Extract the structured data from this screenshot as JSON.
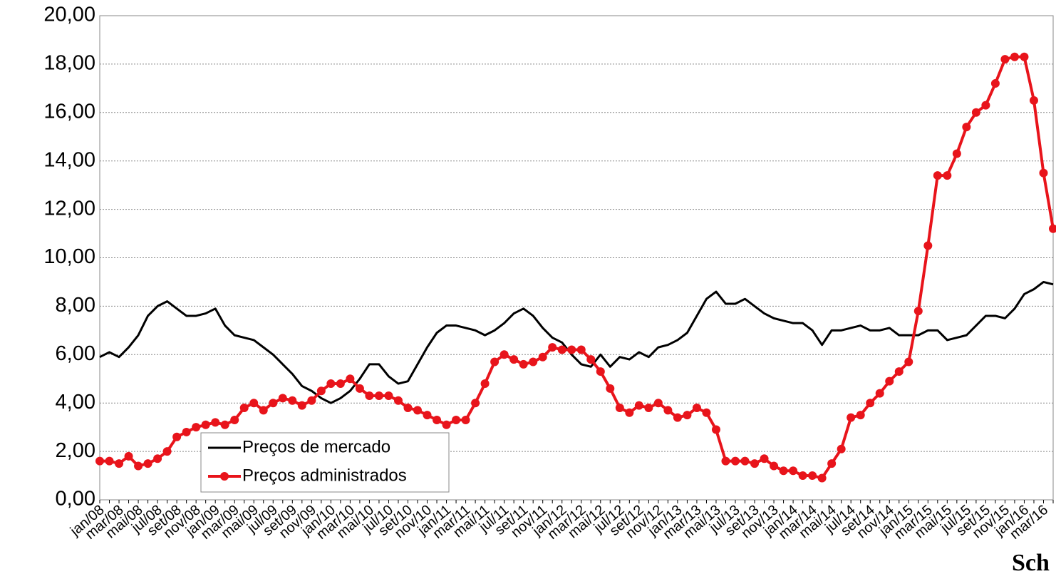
{
  "chart_data": {
    "type": "line",
    "categories": [
      "jan/08",
      null,
      "mar/08",
      null,
      "mai/08",
      null,
      "jul/08",
      null,
      "set/08",
      null,
      "nov/08",
      null,
      "jan/09",
      null,
      "mar/09",
      null,
      "mai/09",
      null,
      "jul/09",
      null,
      "set/09",
      null,
      "nov/09",
      null,
      "jan/10",
      null,
      "mar/10",
      null,
      "mai/10",
      null,
      "jul/10",
      null,
      "set/10",
      null,
      "nov/10",
      null,
      "jan/11",
      null,
      "mar/11",
      null,
      "mai/11",
      null,
      "jul/11",
      null,
      "set/11",
      null,
      "nov/11",
      null,
      "jan/12",
      null,
      "mar/12",
      null,
      "mai/12",
      null,
      "jul/12",
      null,
      "set/12",
      null,
      "nov/12",
      null,
      "jan/13",
      null,
      "mar/13",
      null,
      "mai/13",
      null,
      "jul/13",
      null,
      "set/13",
      null,
      "nov/13",
      null,
      "jan/14",
      null,
      "mar/14",
      null,
      "mai/14",
      null,
      "jul/14",
      null,
      "set/14",
      null,
      "nov/14",
      null,
      "jan/15",
      null,
      "mar/15",
      null,
      "mai/15",
      null,
      "jul/15",
      null,
      "set/15",
      null,
      "nov/15",
      null,
      "jan/16",
      null,
      "mar/16",
      null
    ],
    "series": [
      {
        "name": "Preços de mercado",
        "color": "#000000",
        "marker": false,
        "values": [
          5.9,
          6.1,
          5.9,
          6.3,
          6.8,
          7.6,
          8.0,
          8.2,
          7.9,
          7.6,
          7.6,
          7.7,
          7.9,
          7.2,
          6.8,
          6.7,
          6.6,
          6.3,
          6.0,
          5.6,
          5.2,
          4.7,
          4.5,
          4.2,
          4.0,
          4.2,
          4.5,
          5.0,
          5.6,
          5.6,
          5.1,
          4.8,
          4.9,
          5.6,
          6.3,
          6.9,
          7.2,
          7.2,
          7.1,
          7.0,
          6.8,
          7.0,
          7.3,
          7.7,
          7.9,
          7.6,
          7.1,
          6.7,
          6.5,
          6.0,
          5.6,
          5.5,
          6.0,
          5.5,
          5.9,
          5.8,
          6.1,
          5.9,
          6.3,
          6.4,
          6.6,
          6.9,
          7.6,
          8.3,
          8.6,
          8.1,
          8.1,
          8.3,
          8.0,
          7.7,
          7.5,
          7.4,
          7.3,
          7.3,
          7.0,
          6.4,
          7.0,
          7.0,
          7.1,
          7.2,
          7.0,
          7.0,
          7.1,
          6.8,
          6.8,
          6.8,
          7.0,
          7.0,
          6.6,
          6.7,
          6.8,
          7.2,
          7.6,
          7.6,
          7.5,
          7.9,
          8.5,
          8.7,
          9.0,
          8.9
        ]
      },
      {
        "name": "Preços administrados",
        "color": "#e8141b",
        "marker": true,
        "values": [
          1.6,
          1.6,
          1.5,
          1.8,
          1.4,
          1.5,
          1.7,
          2.0,
          2.6,
          2.8,
          3.0,
          3.1,
          3.2,
          3.1,
          3.3,
          3.8,
          4.0,
          3.7,
          4.0,
          4.2,
          4.1,
          3.9,
          4.1,
          4.5,
          4.8,
          4.8,
          5.0,
          4.6,
          4.3,
          4.3,
          4.3,
          4.1,
          3.8,
          3.7,
          3.5,
          3.3,
          3.1,
          3.3,
          3.3,
          4.0,
          4.8,
          5.7,
          6.0,
          5.8,
          5.6,
          5.7,
          5.9,
          6.3,
          6.2,
          6.2,
          6.2,
          5.8,
          5.3,
          4.6,
          3.8,
          3.6,
          3.9,
          3.8,
          4.0,
          3.7,
          3.4,
          3.5,
          3.8,
          3.6,
          2.9,
          1.6,
          1.6,
          1.6,
          1.5,
          1.7,
          1.4,
          1.2,
          1.2,
          1.0,
          1.0,
          0.9,
          1.5,
          2.1,
          3.4,
          3.5,
          4.0,
          4.4,
          4.9,
          5.3,
          5.7,
          7.8,
          10.5,
          13.4,
          13.4,
          14.3,
          15.4,
          16.0,
          16.3,
          17.2,
          18.2,
          18.3,
          18.3,
          16.5,
          13.5,
          11.2
        ]
      }
    ],
    "ylim": [
      0,
      20
    ],
    "yticks": [
      {
        "value": 0,
        "label": "0,00"
      },
      {
        "value": 2,
        "label": "2,00"
      },
      {
        "value": 4,
        "label": "4,00"
      },
      {
        "value": 6,
        "label": "6,00"
      },
      {
        "value": 8,
        "label": "8,00"
      },
      {
        "value": 10,
        "label": "10,00"
      },
      {
        "value": 12,
        "label": "12,00"
      },
      {
        "value": 14,
        "label": "14,00"
      },
      {
        "value": 16,
        "label": "16,00"
      },
      {
        "value": 18,
        "label": "18,00"
      },
      {
        "value": 20,
        "label": "20,00"
      }
    ],
    "grid": true,
    "legend": "lower left",
    "annotation": "Sch"
  }
}
